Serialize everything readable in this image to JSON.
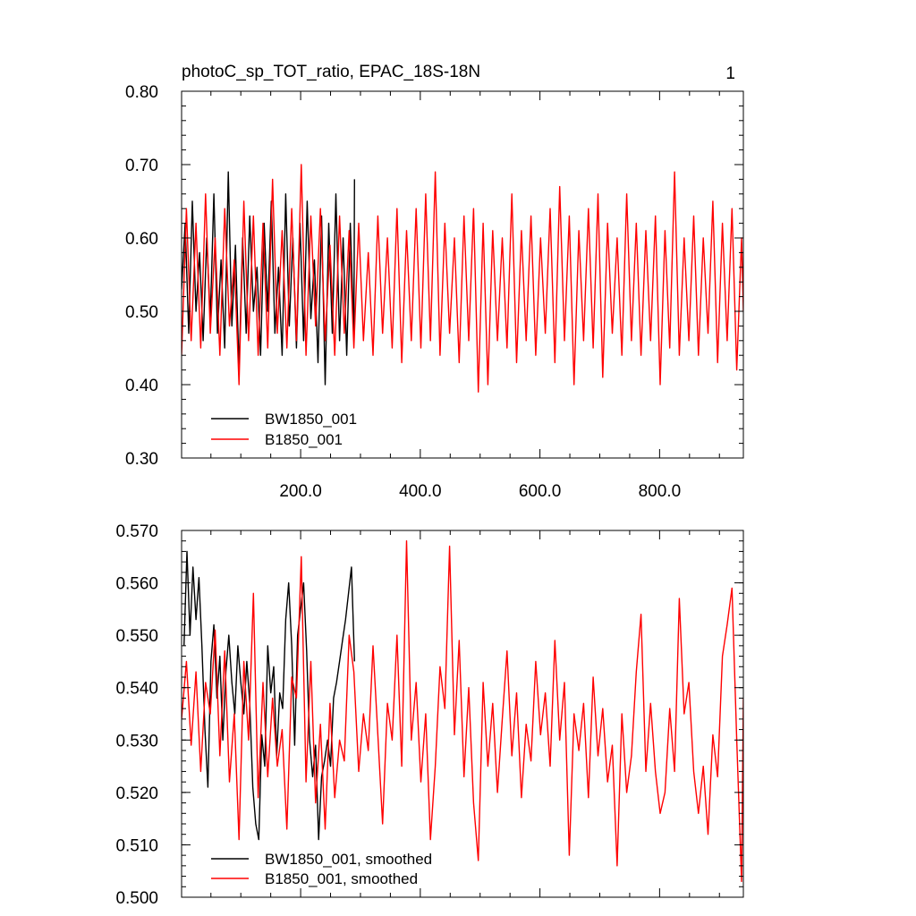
{
  "figure": {
    "title": "photoC_sp_TOT_ratio, EPAC_18S-18N",
    "page_number": "1"
  },
  "colors": {
    "series_1": "#000000",
    "series_2": "#ff0000",
    "frame": "#000000",
    "background": "#ffffff"
  },
  "chart_data": [
    {
      "type": "line",
      "title": "photoC_sp_TOT_ratio, EPAC_18S-18N",
      "xlabel": "",
      "ylabel": "",
      "xlim": [
        1,
        940
      ],
      "ylim": [
        0.3,
        0.8
      ],
      "grid": false,
      "legend_position": "bottom-left",
      "x_ticks": [
        200,
        400,
        600,
        800
      ],
      "x_tick_labels": [
        "200.0",
        "400.0",
        "600.0",
        "800.0"
      ],
      "y_ticks": [
        0.3,
        0.4,
        0.5,
        0.6,
        0.7,
        0.8
      ],
      "y_tick_labels": [
        "0.30",
        "0.40",
        "0.50",
        "0.60",
        "0.70",
        "0.80"
      ],
      "x_minor_step": 50,
      "y_minor_step": 0.02,
      "series": [
        {
          "name": "BW1850_001",
          "color": "#000000",
          "x": [
            1,
            7,
            13,
            19,
            25,
            31,
            37,
            43,
            49,
            55,
            61,
            67,
            73,
            79,
            85,
            91,
            97,
            103,
            109,
            115,
            121,
            127,
            133,
            139,
            145,
            151,
            157,
            163,
            169,
            175,
            181,
            187,
            193,
            199,
            205,
            211,
            217,
            223,
            229,
            235,
            241,
            247,
            253,
            259,
            265,
            271,
            277,
            283,
            289,
            290
          ],
          "y": [
            0.53,
            0.62,
            0.47,
            0.65,
            0.5,
            0.58,
            0.46,
            0.6,
            0.49,
            0.66,
            0.47,
            0.57,
            0.45,
            0.69,
            0.48,
            0.59,
            0.42,
            0.6,
            0.47,
            0.63,
            0.5,
            0.56,
            0.44,
            0.62,
            0.5,
            0.65,
            0.47,
            0.56,
            0.44,
            0.66,
            0.48,
            0.6,
            0.45,
            0.62,
            0.46,
            0.65,
            0.49,
            0.57,
            0.43,
            0.63,
            0.4,
            0.62,
            0.47,
            0.66,
            0.46,
            0.6,
            0.44,
            0.62,
            0.47,
            0.68
          ]
        },
        {
          "name": "B1850_001",
          "color": "#ff0000",
          "x": [
            1,
            9,
            17,
            25,
            33,
            41,
            49,
            57,
            65,
            73,
            81,
            89,
            97,
            105,
            113,
            121,
            129,
            137,
            145,
            153,
            161,
            169,
            177,
            185,
            193,
            201,
            209,
            217,
            225,
            233,
            241,
            249,
            257,
            265,
            273,
            281,
            289,
            297,
            305,
            313,
            321,
            329,
            337,
            345,
            353,
            361,
            369,
            377,
            385,
            393,
            401,
            409,
            417,
            425,
            433,
            441,
            449,
            457,
            465,
            473,
            481,
            489,
            497,
            505,
            513,
            521,
            529,
            537,
            545,
            553,
            561,
            569,
            577,
            585,
            593,
            601,
            609,
            617,
            625,
            633,
            641,
            649,
            657,
            665,
            673,
            681,
            689,
            697,
            705,
            713,
            721,
            729,
            737,
            745,
            753,
            761,
            769,
            777,
            785,
            793,
            801,
            809,
            817,
            825,
            833,
            841,
            849,
            857,
            865,
            873,
            881,
            889,
            897,
            905,
            913,
            921,
            929,
            937,
            940
          ],
          "y": [
            0.44,
            0.64,
            0.46,
            0.62,
            0.45,
            0.66,
            0.47,
            0.6,
            0.44,
            0.64,
            0.48,
            0.57,
            0.4,
            0.65,
            0.46,
            0.63,
            0.44,
            0.62,
            0.45,
            0.68,
            0.47,
            0.61,
            0.45,
            0.64,
            0.46,
            0.7,
            0.44,
            0.63,
            0.48,
            0.64,
            0.46,
            0.59,
            0.44,
            0.63,
            0.47,
            0.61,
            0.45,
            0.62,
            0.46,
            0.58,
            0.44,
            0.63,
            0.47,
            0.6,
            0.45,
            0.64,
            0.43,
            0.61,
            0.46,
            0.64,
            0.45,
            0.66,
            0.46,
            0.69,
            0.44,
            0.62,
            0.47,
            0.6,
            0.43,
            0.63,
            0.46,
            0.64,
            0.39,
            0.62,
            0.4,
            0.61,
            0.46,
            0.6,
            0.45,
            0.66,
            0.43,
            0.61,
            0.46,
            0.63,
            0.44,
            0.6,
            0.47,
            0.64,
            0.43,
            0.67,
            0.46,
            0.63,
            0.4,
            0.61,
            0.46,
            0.64,
            0.45,
            0.66,
            0.41,
            0.62,
            0.47,
            0.6,
            0.44,
            0.66,
            0.46,
            0.62,
            0.44,
            0.61,
            0.46,
            0.63,
            0.4,
            0.61,
            0.45,
            0.69,
            0.44,
            0.6,
            0.46,
            0.63,
            0.44,
            0.6,
            0.47,
            0.65,
            0.43,
            0.62,
            0.46,
            0.64,
            0.42,
            0.6,
            0.5
          ]
        }
      ]
    },
    {
      "type": "line",
      "title": "",
      "xlabel": "",
      "ylabel": "",
      "xlim": [
        1,
        940
      ],
      "ylim": [
        0.5,
        0.57
      ],
      "grid": false,
      "legend_position": "bottom-left",
      "x_ticks": [
        200,
        400,
        600,
        800
      ],
      "x_tick_labels": [
        "",
        "",
        "",
        ""
      ],
      "y_ticks": [
        0.5,
        0.51,
        0.52,
        0.53,
        0.54,
        0.55,
        0.56,
        0.57
      ],
      "y_tick_labels": [
        "0.500",
        "0.510",
        "0.520",
        "0.530",
        "0.540",
        "0.550",
        "0.560",
        "0.570"
      ],
      "x_minor_step": 50,
      "y_minor_step": 0.002,
      "series": [
        {
          "name": "BW1850_001, smoothed",
          "color": "#000000",
          "x": [
            5,
            10,
            15,
            20,
            25,
            30,
            35,
            40,
            45,
            50,
            55,
            60,
            65,
            70,
            75,
            80,
            85,
            90,
            95,
            100,
            105,
            110,
            115,
            120,
            125,
            130,
            135,
            140,
            145,
            150,
            155,
            160,
            165,
            170,
            175,
            180,
            185,
            190,
            195,
            200,
            205,
            210,
            215,
            220,
            225,
            230,
            235,
            240,
            245,
            250,
            255,
            260,
            265,
            270,
            275,
            280,
            285,
            290
          ],
          "y": [
            0.548,
            0.566,
            0.55,
            0.563,
            0.553,
            0.561,
            0.548,
            0.532,
            0.521,
            0.545,
            0.552,
            0.538,
            0.546,
            0.53,
            0.543,
            0.55,
            0.541,
            0.535,
            0.548,
            0.541,
            0.535,
            0.545,
            0.537,
            0.521,
            0.514,
            0.511,
            0.531,
            0.525,
            0.548,
            0.539,
            0.544,
            0.527,
            0.539,
            0.536,
            0.553,
            0.56,
            0.548,
            0.529,
            0.55,
            0.555,
            0.56,
            0.547,
            0.53,
            0.523,
            0.529,
            0.511,
            0.523,
            0.526,
            0.53,
            0.525,
            0.538,
            0.541,
            0.545,
            0.549,
            0.553,
            0.558,
            0.563,
            0.545
          ]
        },
        {
          "name": "B1850_001, smoothed",
          "color": "#ff0000",
          "x": [
            1,
            9,
            17,
            25,
            33,
            41,
            49,
            57,
            65,
            73,
            81,
            89,
            97,
            105,
            113,
            121,
            129,
            137,
            145,
            153,
            161,
            169,
            177,
            185,
            193,
            201,
            209,
            217,
            225,
            233,
            241,
            249,
            257,
            265,
            273,
            281,
            289,
            297,
            305,
            313,
            321,
            329,
            337,
            345,
            353,
            361,
            369,
            377,
            385,
            393,
            401,
            409,
            417,
            425,
            433,
            441,
            449,
            457,
            465,
            473,
            481,
            489,
            497,
            505,
            513,
            521,
            529,
            537,
            545,
            553,
            561,
            569,
            577,
            585,
            593,
            601,
            609,
            617,
            625,
            633,
            641,
            649,
            657,
            665,
            673,
            681,
            689,
            697,
            705,
            713,
            721,
            729,
            737,
            745,
            753,
            761,
            769,
            777,
            785,
            793,
            801,
            809,
            817,
            825,
            833,
            841,
            849,
            857,
            865,
            873,
            881,
            889,
            897,
            905,
            913,
            921,
            929,
            937,
            940
          ],
          "y": [
            0.534,
            0.545,
            0.529,
            0.543,
            0.524,
            0.541,
            0.535,
            0.551,
            0.527,
            0.547,
            0.522,
            0.535,
            0.511,
            0.545,
            0.53,
            0.558,
            0.519,
            0.541,
            0.523,
            0.538,
            0.525,
            0.532,
            0.513,
            0.542,
            0.538,
            0.565,
            0.522,
            0.545,
            0.518,
            0.533,
            0.513,
            0.537,
            0.519,
            0.53,
            0.526,
            0.55,
            0.543,
            0.524,
            0.535,
            0.528,
            0.548,
            0.531,
            0.514,
            0.537,
            0.53,
            0.55,
            0.525,
            0.568,
            0.53,
            0.541,
            0.522,
            0.535,
            0.511,
            0.525,
            0.544,
            0.536,
            0.567,
            0.531,
            0.549,
            0.523,
            0.54,
            0.518,
            0.507,
            0.541,
            0.525,
            0.537,
            0.52,
            0.534,
            0.547,
            0.527,
            0.539,
            0.519,
            0.533,
            0.526,
            0.545,
            0.531,
            0.539,
            0.525,
            0.549,
            0.53,
            0.541,
            0.508,
            0.535,
            0.528,
            0.537,
            0.519,
            0.542,
            0.527,
            0.536,
            0.522,
            0.529,
            0.506,
            0.535,
            0.52,
            0.527,
            0.543,
            0.554,
            0.524,
            0.537,
            0.524,
            0.516,
            0.52,
            0.536,
            0.524,
            0.557,
            0.535,
            0.541,
            0.524,
            0.516,
            0.525,
            0.512,
            0.531,
            0.523,
            0.546,
            0.552,
            0.559,
            0.53,
            0.503,
            0.538
          ]
        }
      ]
    }
  ]
}
